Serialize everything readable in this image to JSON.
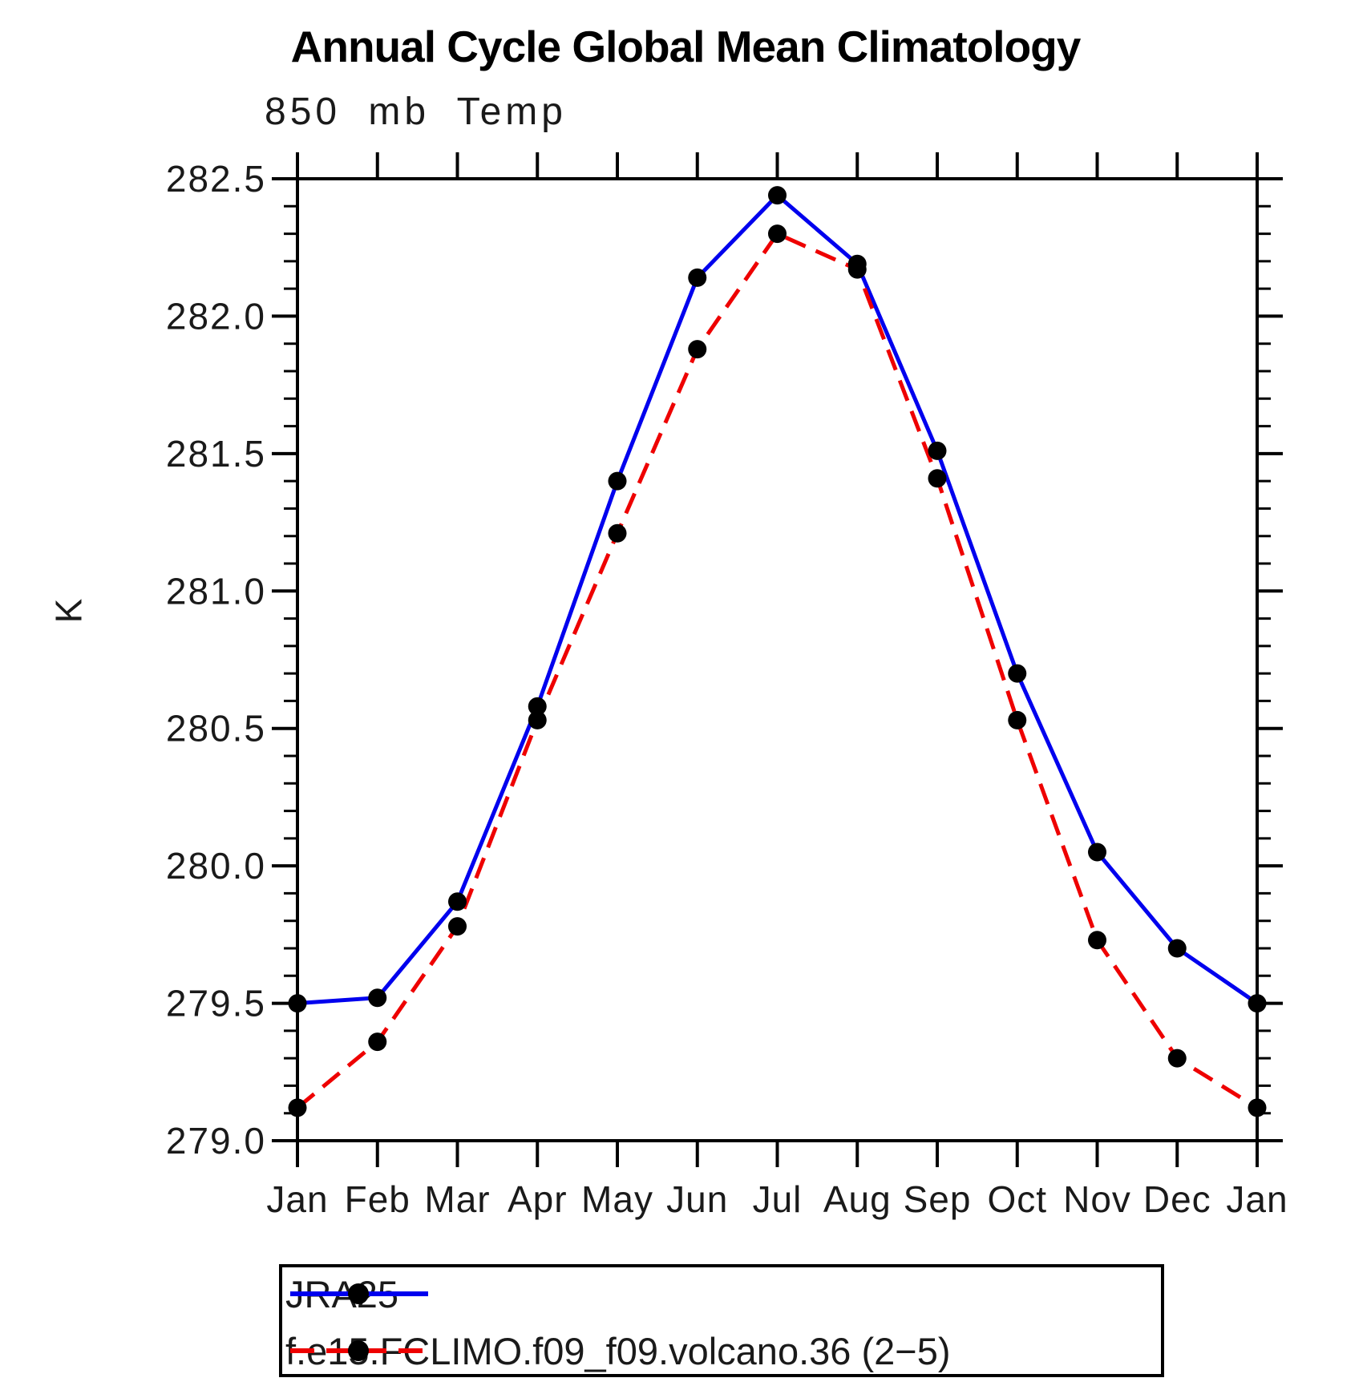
{
  "chart_data": {
    "type": "line",
    "title": "Annual Cycle Global Mean Climatology",
    "subtitle": "850 mb Temp",
    "ylabel": "K",
    "categories": [
      "Jan",
      "Feb",
      "Mar",
      "Apr",
      "May",
      "Jun",
      "Jul",
      "Aug",
      "Sep",
      "Oct",
      "Nov",
      "Dec",
      "Jan"
    ],
    "series": [
      {
        "name": "JRA25",
        "color": "#0000ee",
        "line_style": "solid",
        "marker": "circle",
        "marker_color": "#000000",
        "values": [
          279.5,
          279.52,
          279.87,
          280.58,
          281.4,
          282.14,
          282.44,
          282.19,
          281.51,
          280.7,
          280.05,
          279.7,
          279.5
        ]
      },
      {
        "name": "f.e15.FCLIMO.f09_f09.volcano.36 (2−5)",
        "color": "#ee0000",
        "line_style": "dashed",
        "marker": "circle",
        "marker_color": "#000000",
        "values": [
          279.12,
          279.36,
          279.78,
          280.53,
          281.21,
          281.88,
          282.3,
          282.17,
          281.41,
          280.53,
          279.73,
          279.3,
          279.12
        ]
      }
    ],
    "ylim": [
      279.0,
      282.5
    ],
    "y_tick_major_step": 0.5,
    "y_tick_minor_step": 0.1,
    "y_tick_labels": [
      "279.0",
      "279.5",
      "280.0",
      "280.5",
      "281.0",
      "281.5",
      "282.0",
      "282.5"
    ],
    "grid": "off",
    "legend_position": "bottom-left"
  }
}
